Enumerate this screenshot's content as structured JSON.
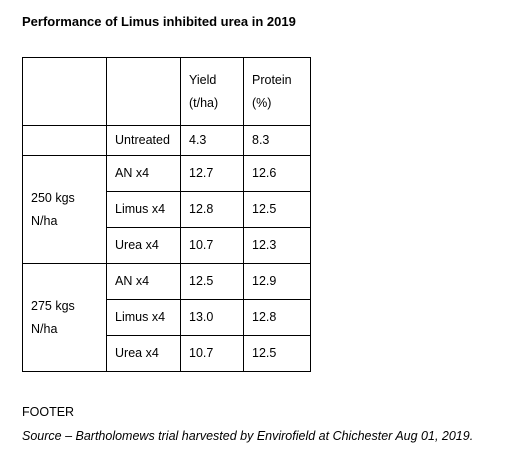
{
  "header": {
    "title": "Performance of Limus inhibited urea in 2019"
  },
  "table": {
    "columns": [
      [
        "Yield",
        "(t/ha)"
      ],
      [
        "Protein",
        "(%)"
      ]
    ],
    "untreated": {
      "label": "Untreated",
      "yield": "4.3",
      "protein": "8.3"
    },
    "groups": [
      {
        "label": [
          "250 kgs",
          "N/ha"
        ],
        "rows": [
          {
            "label": "AN x4",
            "yield": "12.7",
            "protein": "12.6"
          },
          {
            "label": "Limus x4",
            "yield": "12.8",
            "protein": "12.5"
          },
          {
            "label": "Urea x4",
            "yield": "10.7",
            "protein": "12.3"
          }
        ]
      },
      {
        "label": [
          "275 kgs",
          "N/ha"
        ],
        "rows": [
          {
            "label": "AN x4",
            "yield": "12.5",
            "protein": "12.9"
          },
          {
            "label": "Limus x4",
            "yield": "13.0",
            "protein": "12.8"
          },
          {
            "label": "Urea x4",
            "yield": "10.7",
            "protein": "12.5"
          }
        ]
      }
    ]
  },
  "footer": {
    "label": "FOOTER",
    "source": "Source – Bartholomews trial harvested by Envirofield at Chichester Aug 01, 2019."
  }
}
